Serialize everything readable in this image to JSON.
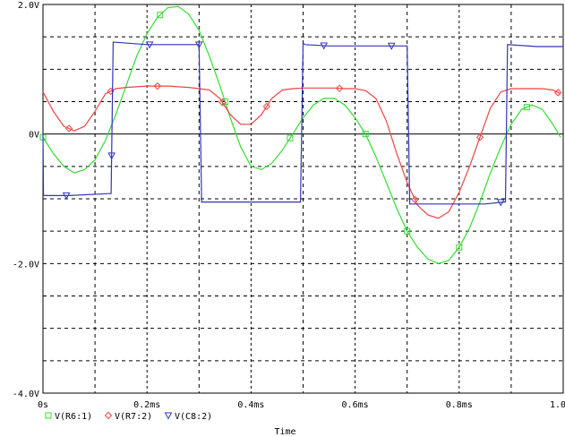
{
  "chart_data": {
    "type": "line",
    "xlabel": "Time",
    "ylabel": "",
    "xlim": [
      0,
      1.0
    ],
    "ylim": [
      -4.0,
      2.0
    ],
    "x_unit": "ms",
    "y_unit": "V",
    "x_ticks": [
      {
        "v": 0.0,
        "label": "0s"
      },
      {
        "v": 0.2,
        "label": "0.2ms"
      },
      {
        "v": 0.4,
        "label": "0.4ms"
      },
      {
        "v": 0.6,
        "label": "0.6ms"
      },
      {
        "v": 0.8,
        "label": "0.8ms"
      },
      {
        "v": 1.0,
        "label": "1.0ms"
      }
    ],
    "y_ticks": [
      {
        "v": 2.0,
        "label": "2.0V"
      },
      {
        "v": 0.0,
        "label": "0V"
      },
      {
        "v": -2.0,
        "label": "-2.0V"
      },
      {
        "v": -4.0,
        "label": "-4.0V"
      }
    ],
    "grid": true,
    "legend_position": "bottom-left",
    "series": [
      {
        "name": "V(R6:1)",
        "color": "#33dd33",
        "marker": "square",
        "x": [
          0.0,
          0.02,
          0.04,
          0.06,
          0.08,
          0.1,
          0.12,
          0.14,
          0.16,
          0.18,
          0.2,
          0.22,
          0.24,
          0.26,
          0.28,
          0.3,
          0.32,
          0.34,
          0.36,
          0.38,
          0.4,
          0.42,
          0.44,
          0.46,
          0.48,
          0.5,
          0.52,
          0.54,
          0.56,
          0.58,
          0.6,
          0.62,
          0.64,
          0.66,
          0.68,
          0.7,
          0.72,
          0.74,
          0.76,
          0.78,
          0.8,
          0.82,
          0.84,
          0.86,
          0.88,
          0.9,
          0.92,
          0.94,
          0.96,
          0.98,
          0.995
        ],
        "values": [
          -0.05,
          -0.3,
          -0.5,
          -0.6,
          -0.55,
          -0.4,
          -0.1,
          0.3,
          0.75,
          1.2,
          1.55,
          1.8,
          1.95,
          1.97,
          1.85,
          1.6,
          1.2,
          0.75,
          0.25,
          -0.2,
          -0.5,
          -0.55,
          -0.45,
          -0.25,
          0.0,
          0.25,
          0.45,
          0.55,
          0.55,
          0.45,
          0.25,
          0.0,
          -0.35,
          -0.75,
          -1.15,
          -1.5,
          -1.75,
          -1.93,
          -2.0,
          -1.95,
          -1.75,
          -1.45,
          -1.05,
          -0.6,
          -0.2,
          0.15,
          0.38,
          0.45,
          0.38,
          0.15,
          -0.05
        ],
        "marker_x": [
          0.0,
          0.225,
          0.35,
          0.475,
          0.62,
          0.7,
          0.8,
          0.93
        ]
      },
      {
        "name": "V(R7:2)",
        "color": "#ee4444",
        "marker": "diamond",
        "x": [
          0.0,
          0.02,
          0.04,
          0.06,
          0.08,
          0.1,
          0.12,
          0.14,
          0.16,
          0.18,
          0.2,
          0.22,
          0.24,
          0.26,
          0.28,
          0.3,
          0.32,
          0.34,
          0.36,
          0.38,
          0.4,
          0.42,
          0.44,
          0.46,
          0.48,
          0.5,
          0.52,
          0.54,
          0.56,
          0.58,
          0.6,
          0.62,
          0.64,
          0.66,
          0.68,
          0.7,
          0.72,
          0.74,
          0.76,
          0.78,
          0.8,
          0.82,
          0.84,
          0.86,
          0.88,
          0.9,
          0.92,
          0.94,
          0.96,
          0.98,
          0.995
        ],
        "values": [
          0.65,
          0.35,
          0.12,
          0.05,
          0.12,
          0.35,
          0.62,
          0.7,
          0.72,
          0.73,
          0.74,
          0.74,
          0.74,
          0.73,
          0.72,
          0.7,
          0.68,
          0.55,
          0.3,
          0.15,
          0.15,
          0.3,
          0.55,
          0.68,
          0.7,
          0.71,
          0.71,
          0.71,
          0.71,
          0.7,
          0.7,
          0.67,
          0.55,
          0.2,
          -0.3,
          -0.75,
          -1.1,
          -1.25,
          -1.3,
          -1.2,
          -0.9,
          -0.5,
          -0.05,
          0.4,
          0.65,
          0.7,
          0.7,
          0.7,
          0.7,
          0.68,
          0.62
        ],
        "marker_x": [
          0.05,
          0.13,
          0.22,
          0.345,
          0.43,
          0.57,
          0.715,
          0.84,
          0.99
        ]
      },
      {
        "name": "V(C8:2)",
        "color": "#3333bb",
        "marker": "triangle",
        "x": [
          0.0,
          0.001,
          0.05,
          0.127,
          0.131,
          0.135,
          0.2,
          0.26,
          0.27,
          0.275,
          0.29,
          0.3,
          0.305,
          0.33,
          0.36,
          0.4,
          0.43,
          0.495,
          0.5,
          0.504,
          0.55,
          0.6,
          0.64,
          0.665,
          0.675,
          0.69,
          0.7,
          0.705,
          0.75,
          0.8,
          0.85,
          0.885,
          0.889,
          0.893,
          0.95,
          1.0
        ],
        "values": [
          0.0,
          -0.95,
          -0.95,
          -0.92,
          -0.92,
          1.42,
          1.38,
          1.38,
          1.38,
          1.38,
          1.38,
          1.38,
          -1.05,
          -1.05,
          -1.05,
          -1.05,
          -1.05,
          -1.05,
          1.4,
          1.38,
          1.36,
          1.36,
          1.36,
          1.36,
          1.36,
          1.36,
          1.36,
          -1.08,
          -1.08,
          -1.08,
          -1.08,
          -1.05,
          -1.05,
          1.38,
          1.35,
          1.35
        ],
        "marker_x": [
          0.045,
          0.132,
          0.205,
          0.3,
          0.54,
          0.67,
          0.88
        ]
      }
    ]
  }
}
